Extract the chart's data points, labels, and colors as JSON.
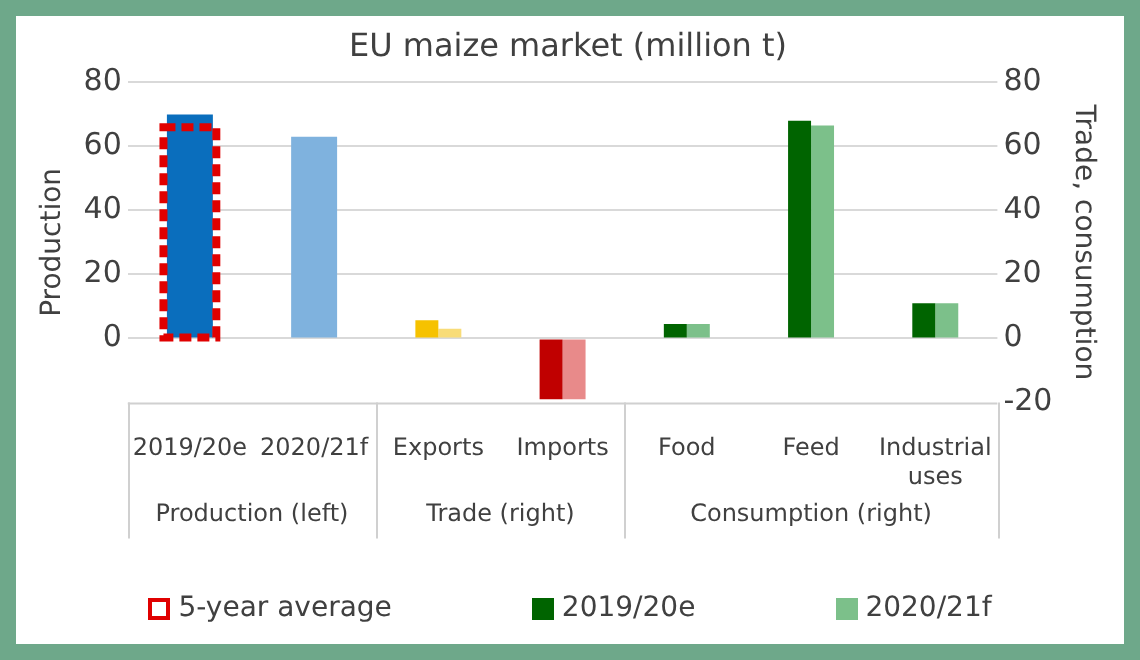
{
  "chart_data": {
    "type": "bar",
    "title": "EU maize market (million t)",
    "ylabel": "Production",
    "y2label": "Trade, consumption",
    "categories": [
      "2019/20e",
      "2020/21f",
      "Exports",
      "Imports",
      "Food",
      "Feed",
      "Industrial uses"
    ],
    "series": [
      {
        "name": "5-year average",
        "color": "#e00000",
        "line_style": "dashed",
        "values": [
          66,
          null,
          null,
          null,
          null,
          null,
          null
        ]
      },
      {
        "name": "2019/20e",
        "color": "#006400",
        "colors": [
          "#0a6ebd",
          "#0a6ebd",
          "#f6c200",
          "#c00000",
          "#006400",
          "#006400",
          "#006400"
        ],
        "values": [
          70,
          null,
          5.7,
          -19,
          4.5,
          68,
          11
        ]
      },
      {
        "name": "2020/21f",
        "color": "#7cc08a",
        "colors": [
          "#7fb2de",
          "#7fb2de",
          "#f8dc78",
          "#e88a8a",
          "#7cc08a",
          "#7cc08a",
          "#7cc08a"
        ],
        "values": [
          null,
          63,
          3,
          -19,
          4.5,
          66.5,
          11
        ]
      }
    ],
    "ylim": [
      -20,
      80
    ],
    "yticks": [
      0,
      20,
      40,
      60,
      80
    ],
    "y2lim": [
      -20,
      80
    ],
    "y2ticks": [
      -20,
      0,
      20,
      40,
      60,
      80
    ],
    "grid": "y",
    "legend": "bottom",
    "annotations": [
      "Production (left)",
      "Trade (right)",
      "Consumption (right)"
    ]
  }
}
